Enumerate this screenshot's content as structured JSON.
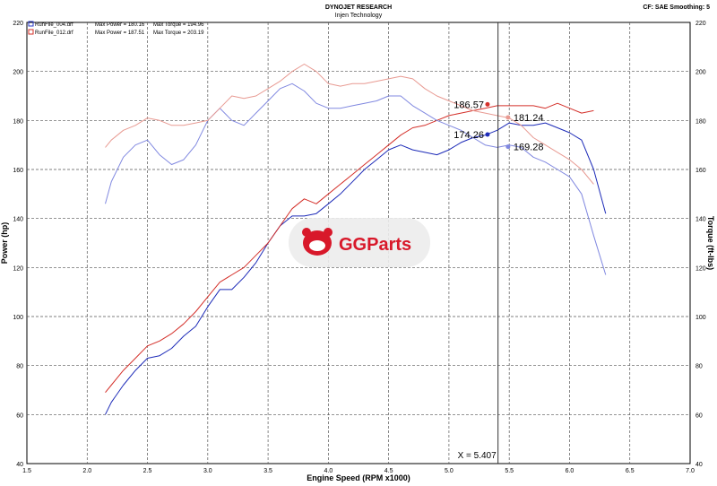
{
  "header": {
    "title": "DYNOJET RESEARCH",
    "subtitle": "Injen Technology",
    "correction": "CF: SAE  Smoothing: 5"
  },
  "logo": {
    "text": "GGParts"
  },
  "chart_data": {
    "type": "line",
    "xlabel": "Engine Speed (RPM x1000)",
    "ylabel_left": "Power (hp)",
    "ylabel_right": "Torque (ft-lbs)",
    "xlim": [
      1.5,
      7.0
    ],
    "ylim": [
      40,
      220
    ],
    "x_ticks": [
      "1.5",
      "2.0",
      "2.5",
      "3.0",
      "3.5",
      "4.0",
      "4.5",
      "5.0",
      "5.5",
      "6.0",
      "6.5",
      "7.0"
    ],
    "y_ticks": [
      "40",
      "60",
      "80",
      "100",
      "120",
      "140",
      "160",
      "180",
      "200",
      "220"
    ],
    "grid": true,
    "legend_position": "top-left",
    "legend": [
      {
        "file": "RunFile_004.drf",
        "power": "Max Power = 180.16",
        "torque": "Max Torque = 194.96",
        "color": "#2a38c8"
      },
      {
        "file": "RunFile_012.drf",
        "power": "Max Power = 187.51",
        "torque": "Max Torque = 203.19",
        "color": "#d4302a"
      }
    ],
    "series": [
      {
        "name": "RunFile_004.drf Power",
        "color": "#1d2bb8",
        "x": [
          2.15,
          2.2,
          2.3,
          2.4,
          2.5,
          2.6,
          2.7,
          2.8,
          2.9,
          3.0,
          3.1,
          3.2,
          3.3,
          3.4,
          3.5,
          3.6,
          3.7,
          3.8,
          3.9,
          4.0,
          4.1,
          4.2,
          4.3,
          4.4,
          4.5,
          4.6,
          4.7,
          4.8,
          4.9,
          5.0,
          5.1,
          5.2,
          5.3,
          5.4,
          5.5,
          5.6,
          5.7,
          5.8,
          5.9,
          6.0,
          6.1,
          6.2,
          6.3
        ],
        "y": [
          60,
          65,
          72,
          78,
          83,
          84,
          87,
          92,
          96,
          104,
          111,
          111,
          116,
          122,
          130,
          137,
          141,
          141,
          142,
          146,
          150,
          155,
          160,
          164,
          168,
          170,
          168,
          167,
          166,
          168,
          171,
          173,
          174,
          176,
          179,
          178,
          178,
          179,
          177,
          175,
          172,
          160,
          142
        ]
      },
      {
        "name": "RunFile_012.drf Power",
        "color": "#d4302a",
        "x": [
          2.15,
          2.2,
          2.3,
          2.4,
          2.5,
          2.6,
          2.7,
          2.8,
          2.9,
          3.0,
          3.1,
          3.2,
          3.3,
          3.4,
          3.5,
          3.6,
          3.7,
          3.8,
          3.9,
          4.0,
          4.1,
          4.2,
          4.3,
          4.4,
          4.5,
          4.6,
          4.7,
          4.8,
          4.9,
          5.0,
          5.1,
          5.2,
          5.3,
          5.4,
          5.5,
          5.6,
          5.7,
          5.8,
          5.9,
          6.0,
          6.1,
          6.2
        ],
        "y": [
          69,
          72,
          78,
          83,
          88,
          90,
          93,
          97,
          102,
          108,
          114,
          117,
          120,
          125,
          130,
          137,
          144,
          148,
          146,
          150,
          154,
          158,
          162,
          166,
          170,
          174,
          177,
          178,
          180,
          182,
          183,
          184,
          185,
          186,
          186,
          186,
          186,
          185,
          187,
          185,
          183,
          184
        ]
      },
      {
        "name": "RunFile_004.drf Torque",
        "color": "#8088e0",
        "x": [
          2.15,
          2.2,
          2.3,
          2.4,
          2.5,
          2.6,
          2.7,
          2.8,
          2.9,
          3.0,
          3.1,
          3.2,
          3.3,
          3.4,
          3.5,
          3.6,
          3.7,
          3.8,
          3.9,
          4.0,
          4.1,
          4.2,
          4.3,
          4.4,
          4.5,
          4.6,
          4.7,
          4.8,
          4.9,
          5.0,
          5.1,
          5.2,
          5.3,
          5.4,
          5.5,
          5.6,
          5.7,
          5.8,
          5.9,
          6.0,
          6.1,
          6.2,
          6.3
        ],
        "y": [
          146,
          155,
          165,
          170,
          172,
          166,
          162,
          164,
          170,
          180,
          185,
          180,
          178,
          183,
          188,
          193,
          195,
          192,
          187,
          185,
          185,
          186,
          187,
          188,
          190,
          190,
          186,
          183,
          180,
          178,
          176,
          173,
          170,
          169,
          170,
          169,
          165,
          163,
          160,
          157,
          150,
          133,
          117
        ]
      },
      {
        "name": "RunFile_012.drf Torque",
        "color": "#e89a92",
        "x": [
          2.15,
          2.2,
          2.3,
          2.4,
          2.5,
          2.6,
          2.7,
          2.8,
          2.9,
          3.0,
          3.1,
          3.2,
          3.3,
          3.4,
          3.5,
          3.6,
          3.7,
          3.8,
          3.9,
          4.0,
          4.1,
          4.2,
          4.3,
          4.4,
          4.5,
          4.6,
          4.7,
          4.8,
          4.9,
          5.0,
          5.1,
          5.2,
          5.3,
          5.4,
          5.5,
          5.6,
          5.7,
          5.8,
          5.9,
          6.0,
          6.1,
          6.2
        ],
        "y": [
          169,
          172,
          176,
          178,
          181,
          180,
          178,
          178,
          179,
          180,
          185,
          190,
          189,
          190,
          193,
          196,
          200,
          203,
          200,
          195,
          194,
          195,
          195,
          196,
          197,
          198,
          197,
          193,
          190,
          188,
          186,
          184,
          183,
          182,
          181,
          178,
          173,
          170,
          167,
          164,
          160,
          154
        ]
      }
    ],
    "cursor": {
      "x": 5.407,
      "label": "X = 5.407",
      "readouts": [
        {
          "text": "186.57",
          "x": 5.32,
          "y": 186.57,
          "color": "#d4302a",
          "side": "left"
        },
        {
          "text": "181.24",
          "x": 5.49,
          "y": 181.24,
          "color": "#e89a92",
          "side": "right"
        },
        {
          "text": "174.26",
          "x": 5.32,
          "y": 174.26,
          "color": "#1d2bb8",
          "side": "left"
        },
        {
          "text": "169.28",
          "x": 5.49,
          "y": 169.28,
          "color": "#8088e0",
          "side": "right"
        }
      ]
    }
  }
}
